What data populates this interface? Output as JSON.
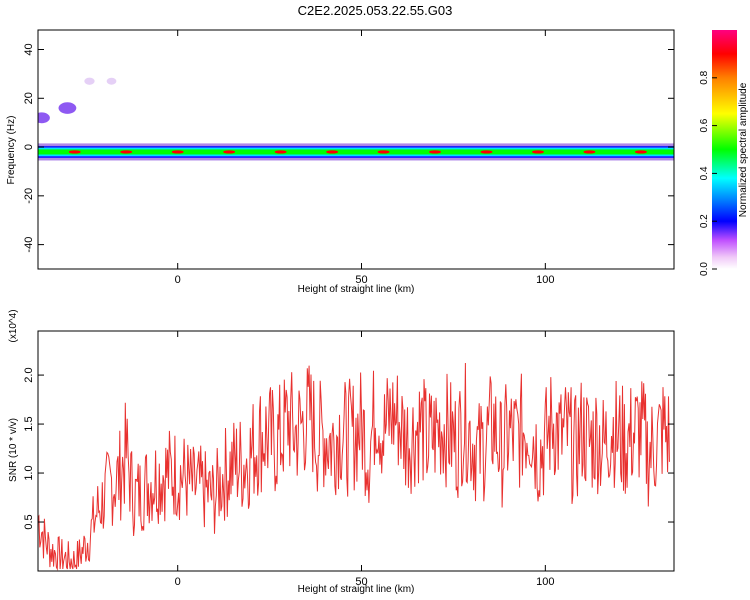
{
  "title": "C2E2.2025.053.22.55.G03",
  "chart_data": [
    {
      "type": "heatmap",
      "xlabel": "Height of straight line (km)",
      "ylabel": "Frequency (Hz)",
      "xlim": [
        -38,
        135
      ],
      "ylim": [
        -50,
        48
      ],
      "xticks": [
        0,
        50,
        100
      ],
      "yticks": [
        -40,
        -20,
        0,
        20,
        40
      ],
      "colorbar": {
        "label": "Normalized spectral amplitude",
        "range": [
          0,
          1
        ],
        "ticks": [
          "0.0",
          "0.2",
          "0.4",
          "0.6",
          "0.8"
        ]
      },
      "scale": [
        "#ffffff",
        "#e0c8f4",
        "#b088e8",
        "#7a3cf0",
        "#2020ff",
        "#00e0ff",
        "#00ff00",
        "#ffff00",
        "#ff8000",
        "#ff0000"
      ],
      "band": {
        "freq_center_hz": -2,
        "freq_halfwidth_hz": 3.5,
        "x_range": [
          -38,
          135
        ]
      },
      "features": [
        {
          "x": -30,
          "y": 16,
          "amplitude": 0.35
        },
        {
          "x": -37,
          "y": 12,
          "amplitude": 0.3
        },
        {
          "x": -24,
          "y": 27,
          "amplitude": 0.08
        },
        {
          "x": -18,
          "y": 27,
          "amplitude": 0.06
        }
      ]
    },
    {
      "type": "line",
      "xlabel": "Height of straight line (km)",
      "ylabel": "SNR (10 * v/v)",
      "y_multiplier": "(x10^4)",
      "xlim": [
        -38,
        135
      ],
      "ylim": [
        0,
        2.45
      ],
      "xticks": [
        0,
        50,
        100
      ],
      "yticks": [
        0.5,
        1.0,
        1.5,
        2.0
      ],
      "yticklabels": [
        "0.5",
        "1.0",
        "1.5",
        "2.0"
      ],
      "series": [
        {
          "color": "#e8312f",
          "x": [
            -38,
            -36,
            -34,
            -32,
            -30,
            -28,
            -26,
            -24,
            -22,
            -20,
            -18,
            -16,
            -14,
            -12,
            -10,
            -8,
            -6,
            -4,
            -2,
            0,
            2,
            4,
            6,
            8,
            10,
            12,
            14,
            16,
            18,
            20,
            22,
            24,
            26,
            28,
            30,
            32,
            34,
            36,
            38,
            40,
            42,
            44,
            46,
            48,
            50,
            52,
            54,
            56,
            58,
            60,
            62,
            64,
            66,
            68,
            70,
            72,
            74,
            76,
            78,
            80,
            82,
            84,
            86,
            88,
            90,
            92,
            94,
            96,
            98,
            100,
            102,
            104,
            106,
            108,
            110,
            112,
            114,
            116,
            118,
            120,
            122,
            124,
            126,
            128,
            130,
            132,
            134
          ],
          "y": [
            0.55,
            0.3,
            0.2,
            0.15,
            0.12,
            0.1,
            0.2,
            0.35,
            0.6,
            0.75,
            0.9,
            0.95,
            1.2,
            0.75,
            0.8,
            0.9,
            0.95,
            1.0,
            1.0,
            1.0,
            0.95,
            0.85,
            0.85,
            0.8,
            0.75,
            0.95,
            1.05,
            1.1,
            1.1,
            1.2,
            1.35,
            1.4,
            1.3,
            1.35,
            1.55,
            1.4,
            1.5,
            1.6,
            1.35,
            1.4,
            1.3,
            1.45,
            1.35,
            1.4,
            1.5,
            1.2,
            1.7,
            1.4,
            1.6,
            1.55,
            1.35,
            1.4,
            1.5,
            1.3,
            1.4,
            1.5,
            1.4,
            1.3,
            1.55,
            1.35,
            1.2,
            1.35,
            1.5,
            1.2,
            1.4,
            1.35,
            1.45,
            1.5,
            1.2,
            1.3,
            1.55,
            1.35,
            1.4,
            1.2,
            1.45,
            1.3,
            1.4,
            1.25,
            1.5,
            1.35,
            1.3,
            1.4,
            1.45,
            1.2,
            1.3,
            1.45,
            1.35
          ]
        }
      ]
    }
  ]
}
